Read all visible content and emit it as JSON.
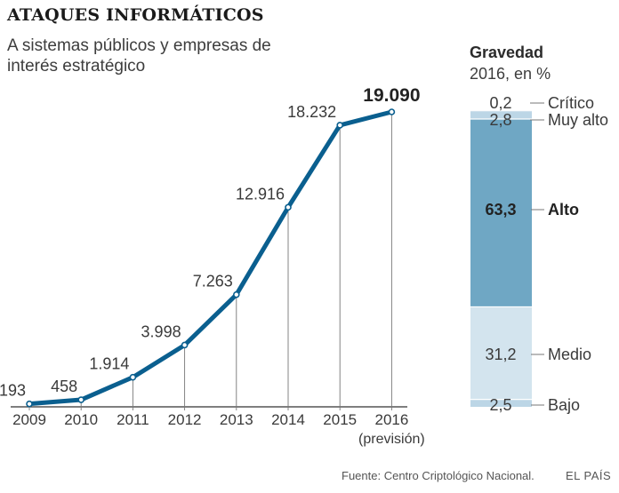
{
  "header": {
    "title": "ATAQUES INFORMÁTICOS",
    "subtitle": "A sistemas públicos y empresas de interés estratégico"
  },
  "colors": {
    "line": "#0a5f8f",
    "grid": "#777777",
    "alto": "#6fa7c4",
    "medio": "#d3e4ee",
    "bajo": "#bcd6e6",
    "text": "#3a3a3a"
  },
  "chart_data": [
    {
      "type": "line",
      "x": [
        "2009",
        "2010",
        "2011",
        "2012",
        "2013",
        "2014",
        "2015",
        "2016"
      ],
      "x_sublabels": [
        "",
        "",
        "",
        "",
        "",
        "",
        "",
        "(previsión)"
      ],
      "values": [
        193,
        458,
        1914,
        3998,
        7263,
        12916,
        18232,
        19090
      ],
      "value_labels": [
        "193",
        "458",
        "1.914",
        "3.998",
        "7.263",
        "12.916",
        "18.232",
        "19.090"
      ],
      "highlight_index": 7,
      "ylim": [
        0,
        20000
      ]
    },
    {
      "type": "bar",
      "title": "Gravedad",
      "subtitle": "2016, en %",
      "stacked": true,
      "series": [
        {
          "name": "Crítico",
          "value": 0.2,
          "label": "0,2"
        },
        {
          "name": "Muy alto",
          "value": 2.8,
          "label": "2,8"
        },
        {
          "name": "Alto",
          "value": 63.3,
          "label": "63,3"
        },
        {
          "name": "Medio",
          "value": 31.2,
          "label": "31,2"
        },
        {
          "name": "Bajo",
          "value": 2.5,
          "label": "2,5"
        }
      ]
    }
  ],
  "footer": {
    "source": "Fuente: Centro Criptológico Nacional.",
    "brand": "EL PAÍS"
  }
}
